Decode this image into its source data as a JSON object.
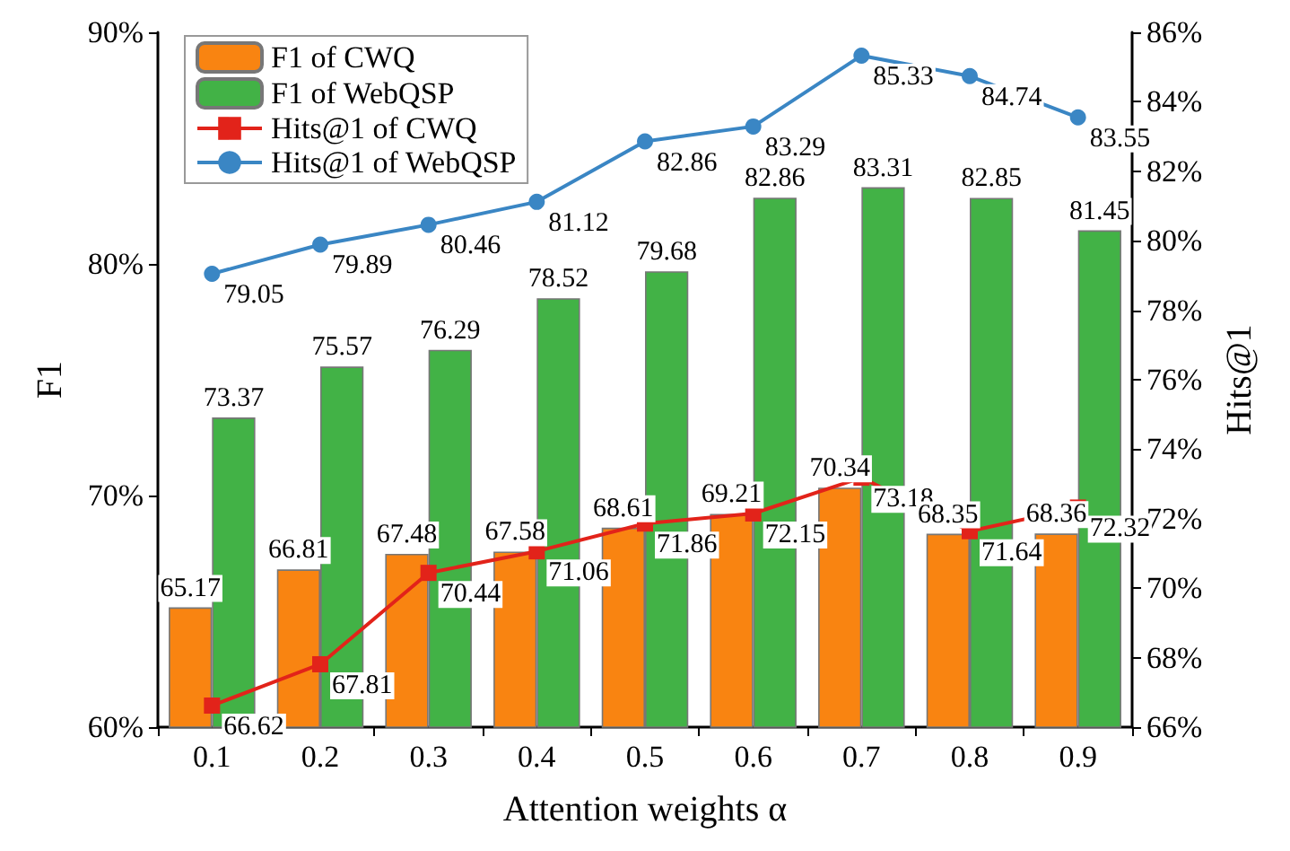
{
  "chart_data": {
    "type": "bar",
    "xlabel": "Attention weights α",
    "ylabel": "F1",
    "y2label": "Hits@1",
    "categories": [
      "0.1",
      "0.2",
      "0.3",
      "0.4",
      "0.5",
      "0.6",
      "0.7",
      "0.8",
      "0.9"
    ],
    "series": [
      {
        "name": "F1 of CWQ",
        "type": "bar",
        "color": "#f98411",
        "values": [
          65.17,
          66.81,
          67.48,
          67.58,
          68.61,
          69.21,
          70.34,
          68.35,
          68.36
        ]
      },
      {
        "name": "F1 of WebQSP",
        "type": "bar",
        "color": "#42b246",
        "values": [
          73.37,
          75.57,
          76.29,
          78.52,
          79.68,
          82.86,
          83.31,
          82.85,
          81.45
        ]
      },
      {
        "name": "Hits@1 of CWQ",
        "type": "line",
        "axis": "y2",
        "marker": "square",
        "color": "#e2231a",
        "values": [
          66.62,
          67.81,
          70.44,
          71.06,
          71.86,
          72.15,
          73.18,
          71.64,
          72.32
        ]
      },
      {
        "name": "Hits@1 of WebQSP",
        "type": "line",
        "axis": "y2",
        "marker": "circle",
        "color": "#3a86c4",
        "values": [
          79.05,
          79.89,
          80.46,
          81.12,
          82.86,
          83.29,
          85.33,
          84.74,
          83.55
        ]
      }
    ],
    "ylim": [
      60,
      90
    ],
    "yticks": [
      {
        "value": 60,
        "label": "60%"
      },
      {
        "value": 70,
        "label": "70%"
      },
      {
        "value": 80,
        "label": "80%"
      },
      {
        "value": 90,
        "label": "90%"
      }
    ],
    "y2lim": [
      66,
      86
    ],
    "y2ticks": [
      {
        "value": 66,
        "label": "66%"
      },
      {
        "value": 68,
        "label": "68%"
      },
      {
        "value": 70,
        "label": "70%"
      },
      {
        "value": 72,
        "label": "72%"
      },
      {
        "value": 74,
        "label": "74%"
      },
      {
        "value": 76,
        "label": "76%"
      },
      {
        "value": 78,
        "label": "78%"
      },
      {
        "value": 80,
        "label": "80%"
      },
      {
        "value": 82,
        "label": "82%"
      },
      {
        "value": 84,
        "label": "84%"
      },
      {
        "value": 86,
        "label": "86%"
      }
    ],
    "data_labels": true,
    "grid": false,
    "legend": "top left"
  }
}
